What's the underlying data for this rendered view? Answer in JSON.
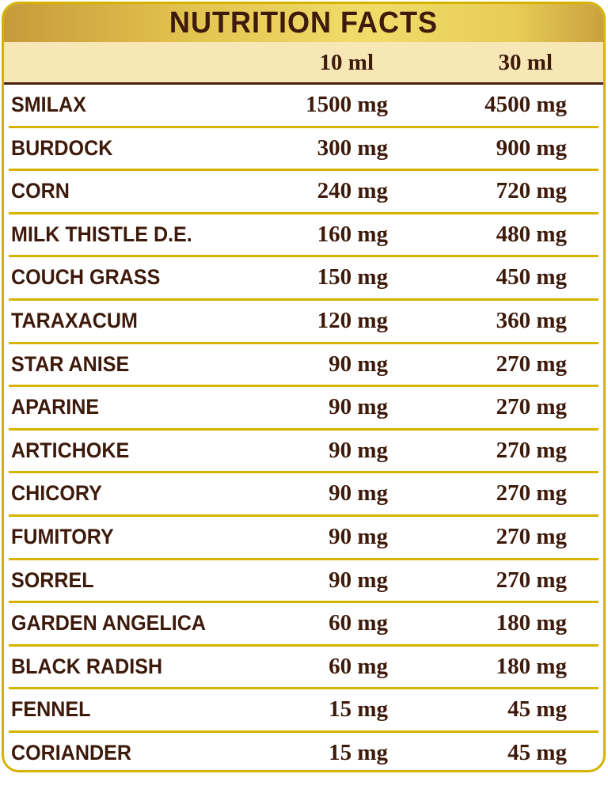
{
  "title": "NUTRITION FACTS",
  "columns": [
    "10 ml",
    "30 ml"
  ],
  "rows": [
    {
      "name": "SMILAX",
      "v10": "1500 mg",
      "v30": "4500 mg"
    },
    {
      "name": "BURDOCK",
      "v10": "300 mg",
      "v30": "900 mg"
    },
    {
      "name": "CORN",
      "v10": "240 mg",
      "v30": "720 mg"
    },
    {
      "name": "MILK THISTLE D.E.",
      "v10": "160 mg",
      "v30": "480 mg"
    },
    {
      "name": "COUCH GRASS",
      "v10": "150 mg",
      "v30": "450 mg"
    },
    {
      "name": "TARAXACUM",
      "v10": "120 mg",
      "v30": "360 mg"
    },
    {
      "name": "STAR ANISE",
      "v10": "90 mg",
      "v30": "270 mg"
    },
    {
      "name": "APARINE",
      "v10": "90 mg",
      "v30": "270 mg"
    },
    {
      "name": "ARTICHOKE",
      "v10": "90 mg",
      "v30": "270 mg"
    },
    {
      "name": "CHICORY",
      "v10": "90 mg",
      "v30": "270 mg"
    },
    {
      "name": "FUMITORY",
      "v10": "90 mg",
      "v30": "270 mg"
    },
    {
      "name": "SORREL",
      "v10": "90 mg",
      "v30": "270 mg"
    },
    {
      "name": "GARDEN ANGELICA",
      "v10": "60 mg",
      "v30": "180 mg"
    },
    {
      "name": "BLACK RADISH",
      "v10": "60 mg",
      "v30": "180 mg"
    },
    {
      "name": "FENNEL",
      "v10": "15 mg",
      "v30": "45 mg"
    },
    {
      "name": "CORIANDER",
      "v10": "15 mg",
      "v30": "45 mg"
    }
  ],
  "colors": {
    "text": "#3d1a0a",
    "border": "#d4b400",
    "header_bg": "#f7e7b6"
  }
}
